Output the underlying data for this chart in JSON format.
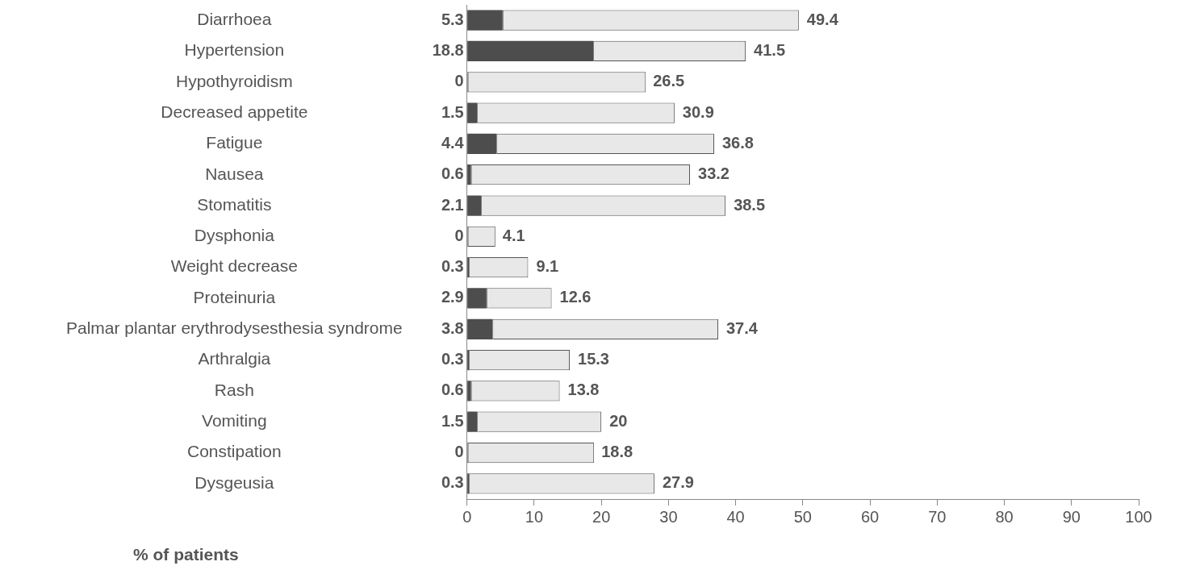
{
  "chart_data": {
    "type": "bar",
    "orientation": "horizontal",
    "stacked": true,
    "xlabel": "% of patients",
    "categories": [
      "Diarrhoea",
      "Hypertension",
      "Hypothyroidism",
      "Decreased appetite",
      "Fatigue",
      "Nausea",
      "Stomatitis",
      "Dysphonia",
      "Weight decrease",
      "Proteinuria",
      "Palmar plantar erythrodysesthesia syndrome",
      "Arthralgia",
      "Rash",
      "Vomiting",
      "Constipation",
      "Dysgeusia"
    ],
    "series": [
      {
        "color": "#4d4d4d",
        "values": [
          5.3,
          18.8,
          0,
          1.5,
          4.4,
          0.6,
          2.1,
          0,
          0.3,
          2.9,
          3.8,
          0.3,
          0.6,
          1.5,
          0,
          0.3
        ],
        "value_labels": [
          "5.3",
          "18.8",
          "0",
          "1.5",
          "4.4",
          "0.6",
          "2.1",
          "0",
          "0.3",
          "2.9",
          "3.8",
          "0.3",
          "0.6",
          "1.5",
          "0",
          "0.3"
        ]
      },
      {
        "color": "#e8e8e8",
        "values": [
          44.1,
          22.7,
          26.5,
          29.4,
          32.4,
          32.6,
          36.4,
          4.1,
          8.8,
          9.7,
          33.6,
          15.0,
          13.2,
          18.5,
          18.8,
          27.6
        ]
      }
    ],
    "totals": [
      "49.4",
      "41.5",
      "26.5",
      "30.9",
      "36.8",
      "33.2",
      "38.5",
      "4.1",
      "9.1",
      "12.6",
      "37.4",
      "15.3",
      "13.8",
      "20",
      "18.8",
      "27.9"
    ],
    "xlim": [
      0,
      100
    ],
    "xticks": [
      0,
      10,
      20,
      30,
      40,
      50,
      60,
      70,
      80,
      90,
      100
    ],
    "grid": false
  }
}
